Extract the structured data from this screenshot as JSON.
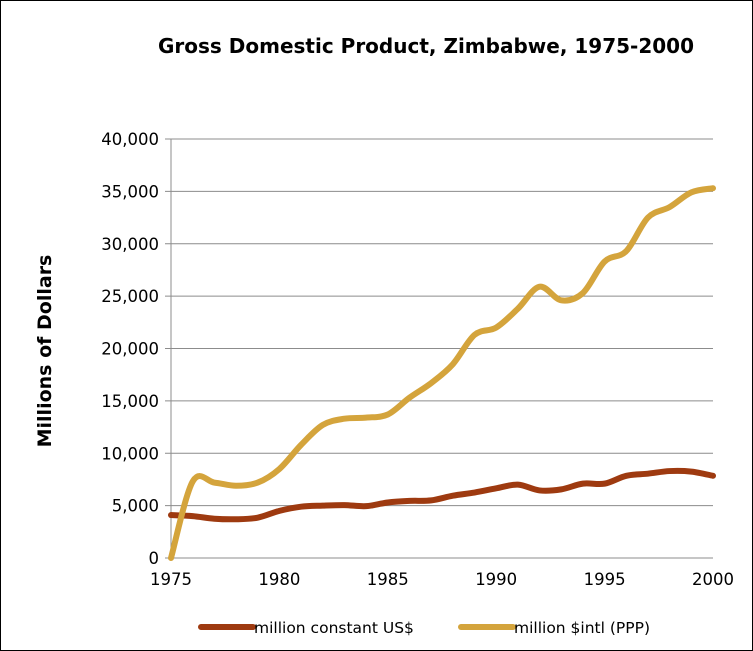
{
  "chart_data": {
    "type": "line",
    "title": "Gross Domestic Product, Zimbabwe, 1975-2000",
    "ylabel": "Millions of Dollars",
    "xlabel": "",
    "xlim": [
      1975,
      2000
    ],
    "ylim": [
      0,
      40000
    ],
    "x_ticks": [
      1975,
      1980,
      1985,
      1990,
      1995,
      2000
    ],
    "x_tick_labels": [
      "1975",
      "1980",
      "1985",
      "1990",
      "1995",
      "2000"
    ],
    "y_ticks": [
      0,
      5000,
      10000,
      15000,
      20000,
      25000,
      30000,
      35000,
      40000
    ],
    "y_tick_labels": [
      "0",
      "5,000",
      "10,000",
      "15,000",
      "20,000",
      "25,000",
      "30,000",
      "35,000",
      "40,000"
    ],
    "grid": true,
    "legend_position": "bottom",
    "x": [
      1975,
      1976,
      1977,
      1978,
      1979,
      1980,
      1981,
      1982,
      1983,
      1984,
      1985,
      1986,
      1987,
      1988,
      1989,
      1990,
      1991,
      1992,
      1993,
      1994,
      1995,
      1996,
      1997,
      1998,
      1999,
      2000
    ],
    "series": [
      {
        "name": "million constant US$",
        "color": "#9e3a10",
        "values": [
          4100,
          4000,
          3750,
          3700,
          3850,
          4500,
          4900,
          5000,
          5050,
          4950,
          5300,
          5450,
          5500,
          5950,
          6250,
          6650,
          7000,
          6450,
          6550,
          7100,
          7100,
          7850,
          8050,
          8300,
          8250,
          7850
        ]
      },
      {
        "name": "million $intl (PPP)",
        "color": "#d4a43c",
        "values": [
          0,
          7300,
          7200,
          6900,
          7200,
          8500,
          10800,
          12700,
          13300,
          13400,
          13700,
          15300,
          16700,
          18500,
          21300,
          22000,
          23800,
          25900,
          24600,
          25300,
          28300,
          29300,
          32500,
          33500,
          34900,
          35300
        ]
      }
    ]
  }
}
